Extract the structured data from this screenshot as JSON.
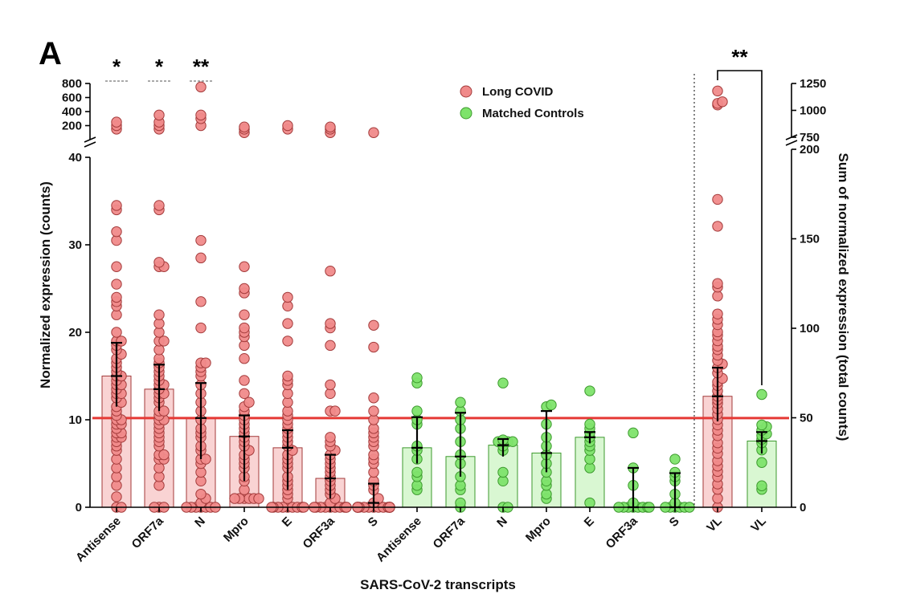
{
  "panel_label": "A",
  "colors": {
    "long_covid_fill": "#f08a8a",
    "long_covid_bar": "#f9d3d3",
    "long_covid_edge": "#a33a3a",
    "control_fill": "#7ee36b",
    "control_bar": "#d9f7d2",
    "control_edge": "#3d9a2e",
    "threshold": "#e53935"
  },
  "chart_data": {
    "type": "scatter",
    "xlabel": "SARS-CoV-2 transcripts",
    "ylabel": "Normalized expression (counts)",
    "ylabel_right": "Sum of normalized expression (total counts)",
    "categories": [
      "Antisense",
      "ORF7a",
      "N",
      "Mpro",
      "E",
      "ORF3a",
      "S",
      "Antisense",
      "ORF7a",
      "N",
      "Mpro",
      "E",
      "ORF3a",
      "S",
      "VL",
      "VL"
    ],
    "left_axis": {
      "lower_range": [
        0,
        40
      ],
      "lower_ticks": [
        "0",
        "10",
        "20",
        "30",
        "40"
      ],
      "upper_range": [
        0,
        800
      ],
      "upper_ticks": [
        "200",
        "400",
        "600",
        "800"
      ]
    },
    "right_axis": {
      "lower_range": [
        0,
        200
      ],
      "lower_ticks": [
        "0",
        "50",
        "100",
        "150",
        "200"
      ],
      "upper_range": [
        750,
        1250
      ],
      "upper_ticks": [
        "750",
        "1000",
        "1250"
      ]
    },
    "threshold_value": 10.2,
    "legend": {
      "placement": "top-center",
      "entries": [
        {
          "label": "Long COVID",
          "group": "long_covid"
        },
        {
          "label": "Matched Controls",
          "group": "control"
        }
      ]
    },
    "significance": [
      {
        "category_index": 0,
        "label": "*"
      },
      {
        "category_index": 1,
        "label": "*"
      },
      {
        "category_index": 2,
        "label": "**"
      },
      {
        "category_index_from": 14,
        "category_index_to": 15,
        "label": "**"
      }
    ],
    "groups": [
      {
        "category": "Antisense",
        "group": "long_covid",
        "axis": "left",
        "bar": 15.0,
        "err_low": 11.5,
        "err_high": 18.8,
        "points": [
          0,
          0,
          1.2,
          2.5,
          3.5,
          4.5,
          5.5,
          6.5,
          7,
          7.5,
          8,
          8,
          8.5,
          8.5,
          9,
          9.5,
          9.5,
          10,
          10,
          10.5,
          11,
          11.5,
          12,
          12.5,
          13,
          13,
          13.5,
          14,
          14,
          14.5,
          15,
          15,
          15.5,
          16,
          16.5,
          17,
          17.5,
          18,
          18.5,
          19,
          19,
          20,
          22,
          23,
          23.5,
          24,
          25.5,
          27.5,
          30.5,
          31.5,
          34,
          34.5,
          150,
          200,
          250
        ]
      },
      {
        "category": "ORF7a",
        "group": "long_covid",
        "axis": "left",
        "bar": 13.5,
        "err_low": 11.0,
        "err_high": 16.3,
        "points": [
          0,
          0,
          0,
          2.5,
          3.5,
          4.5,
          5.5,
          5.5,
          6,
          6,
          7,
          7.5,
          8,
          8.5,
          9,
          9.5,
          10,
          10,
          10.5,
          11,
          11,
          12,
          12.5,
          13,
          13,
          13.5,
          14,
          14,
          14.5,
          15,
          15.5,
          16,
          16.5,
          17,
          18,
          19,
          19,
          20,
          21,
          22,
          27.5,
          27.5,
          28,
          34,
          34.5,
          150,
          200,
          250,
          350
        ]
      },
      {
        "category": "N",
        "group": "long_covid",
        "axis": "left",
        "bar": 10.2,
        "err_low": 5.5,
        "err_high": 14.2,
        "points": [
          0,
          0,
          0,
          0,
          0,
          0,
          0,
          0.5,
          1,
          1.5,
          3,
          4,
          5,
          5.5,
          5.5,
          6.5,
          7,
          8,
          8.5,
          9,
          10,
          11,
          12,
          13,
          14,
          15,
          15.5,
          16,
          16.5,
          16.5,
          20.5,
          23.5,
          28.5,
          30.5,
          200,
          300,
          350,
          750
        ]
      },
      {
        "category": "Mpro",
        "group": "long_covid",
        "axis": "left",
        "bar": 8.1,
        "err_low": 3.0,
        "err_high": 10.5,
        "points": [
          1,
          1,
          1,
          1,
          1,
          1,
          2,
          3,
          3.5,
          4.5,
          5,
          5.5,
          6,
          6.5,
          7,
          7.5,
          8,
          8.5,
          9,
          9.5,
          10,
          10.5,
          11,
          11.5,
          12,
          13,
          14.5,
          17,
          18.5,
          19.5,
          20,
          20.5,
          22,
          24.5,
          25,
          27.5,
          100,
          150,
          180
        ]
      },
      {
        "category": "E",
        "group": "long_covid",
        "axis": "left",
        "bar": 6.8,
        "err_low": 2.0,
        "err_high": 8.8,
        "points": [
          0,
          0,
          0,
          0,
          0,
          0,
          0,
          0,
          0,
          1,
          1.5,
          2,
          2.5,
          3,
          3.5,
          4.5,
          5,
          5.5,
          6,
          6.5,
          7,
          7.5,
          8,
          8.5,
          9,
          9.5,
          10,
          10.5,
          11,
          12,
          13,
          14,
          14.5,
          15,
          19,
          21,
          23,
          24,
          150,
          200
        ]
      },
      {
        "category": "ORF3a",
        "group": "long_covid",
        "axis": "left",
        "bar": 3.3,
        "err_low": 1.0,
        "err_high": 6.0,
        "points": [
          0,
          0,
          0,
          0,
          0,
          0,
          0,
          0,
          0,
          0,
          0.5,
          1,
          1.5,
          2,
          2.5,
          3,
          3.5,
          4,
          4.5,
          5,
          5.5,
          6,
          6.5,
          7,
          7.5,
          8,
          11,
          11,
          13,
          14,
          18.5,
          20.5,
          21,
          27,
          100,
          150,
          180
        ]
      },
      {
        "category": "S",
        "group": "long_covid",
        "axis": "left",
        "bar": 0.5,
        "err_low": 0.0,
        "err_high": 2.7,
        "points": [
          0,
          0,
          0,
          0,
          0,
          0,
          0,
          0,
          0,
          0,
          0,
          0,
          0,
          0,
          0,
          0,
          0.5,
          1,
          2,
          2.5,
          3,
          4,
          5,
          5.5,
          6,
          7,
          7.5,
          8,
          8.5,
          9,
          10,
          11,
          12.5,
          18.3,
          20.8,
          100
        ]
      },
      {
        "category": "Antisense",
        "group": "control",
        "axis": "left",
        "bar": 6.8,
        "err_low": 5.0,
        "err_high": 10.3,
        "points": [
          2,
          2.5,
          3.5,
          4,
          5.5,
          6.5,
          7,
          9.5,
          10,
          11,
          14.2,
          14.8
        ]
      },
      {
        "category": "ORF7a",
        "group": "control",
        "axis": "left",
        "bar": 5.8,
        "err_low": 3.5,
        "err_high": 10.8,
        "points": [
          0,
          0.5,
          2,
          2.5,
          3.5,
          5,
          6,
          7.5,
          9,
          10,
          11,
          12
        ]
      },
      {
        "category": "N",
        "group": "control",
        "axis": "left",
        "bar": 7.1,
        "err_low": 5.8,
        "err_high": 7.8,
        "points": [
          0,
          0,
          3,
          4,
          6.5,
          7,
          7.5,
          7.5,
          7.5,
          7.5,
          7.7,
          14.2
        ]
      },
      {
        "category": "Mpro",
        "group": "control",
        "axis": "left",
        "bar": 6.2,
        "err_low": 4.0,
        "err_high": 11.0,
        "points": [
          1,
          1.5,
          2.5,
          3,
          4,
          5,
          6,
          7,
          8,
          9.5,
          11.5,
          11.7
        ]
      },
      {
        "category": "E",
        "group": "control",
        "axis": "left",
        "bar": 8.0,
        "err_low": 7.3,
        "err_high": 8.6,
        "points": [
          0.5,
          4.5,
          5.5,
          6.5,
          7,
          7.5,
          8,
          8.5,
          9,
          9.5,
          13.3
        ]
      },
      {
        "category": "ORF3a",
        "group": "control",
        "axis": "left",
        "bar": 0.0,
        "err_low": 0.0,
        "err_high": 4.5,
        "points": [
          0,
          0,
          0,
          0,
          0,
          0,
          0,
          0,
          0.5,
          2.5,
          4.5,
          8.5
        ]
      },
      {
        "category": "S",
        "group": "control",
        "axis": "left",
        "bar": 0.0,
        "err_low": 0.0,
        "err_high": 3.9,
        "points": [
          0,
          0,
          0,
          0,
          0,
          0,
          0.5,
          1.5,
          3,
          3.5,
          4,
          5.5
        ]
      },
      {
        "category": "VL",
        "group": "long_covid",
        "axis": "right",
        "bar": 62.0,
        "err_low": 48.0,
        "err_high": 78.0,
        "points": [
          0,
          5,
          10,
          13,
          17,
          20,
          23,
          26,
          30,
          33,
          36,
          40,
          43,
          46,
          49,
          52,
          55,
          58,
          60,
          62,
          65,
          68,
          70,
          72,
          75,
          78,
          80,
          82,
          85,
          88,
          90,
          93,
          96,
          98,
          102,
          105,
          108,
          118,
          123,
          125,
          157,
          172,
          1050,
          1065,
          1080,
          1180
        ]
      },
      {
        "category": "VL",
        "group": "control",
        "axis": "right",
        "bar": 37.0,
        "err_low": 30.0,
        "err_high": 42.0,
        "points": [
          10,
          12,
          25,
          32,
          36,
          38,
          40,
          41,
          43,
          45,
          46,
          63
        ]
      }
    ]
  }
}
